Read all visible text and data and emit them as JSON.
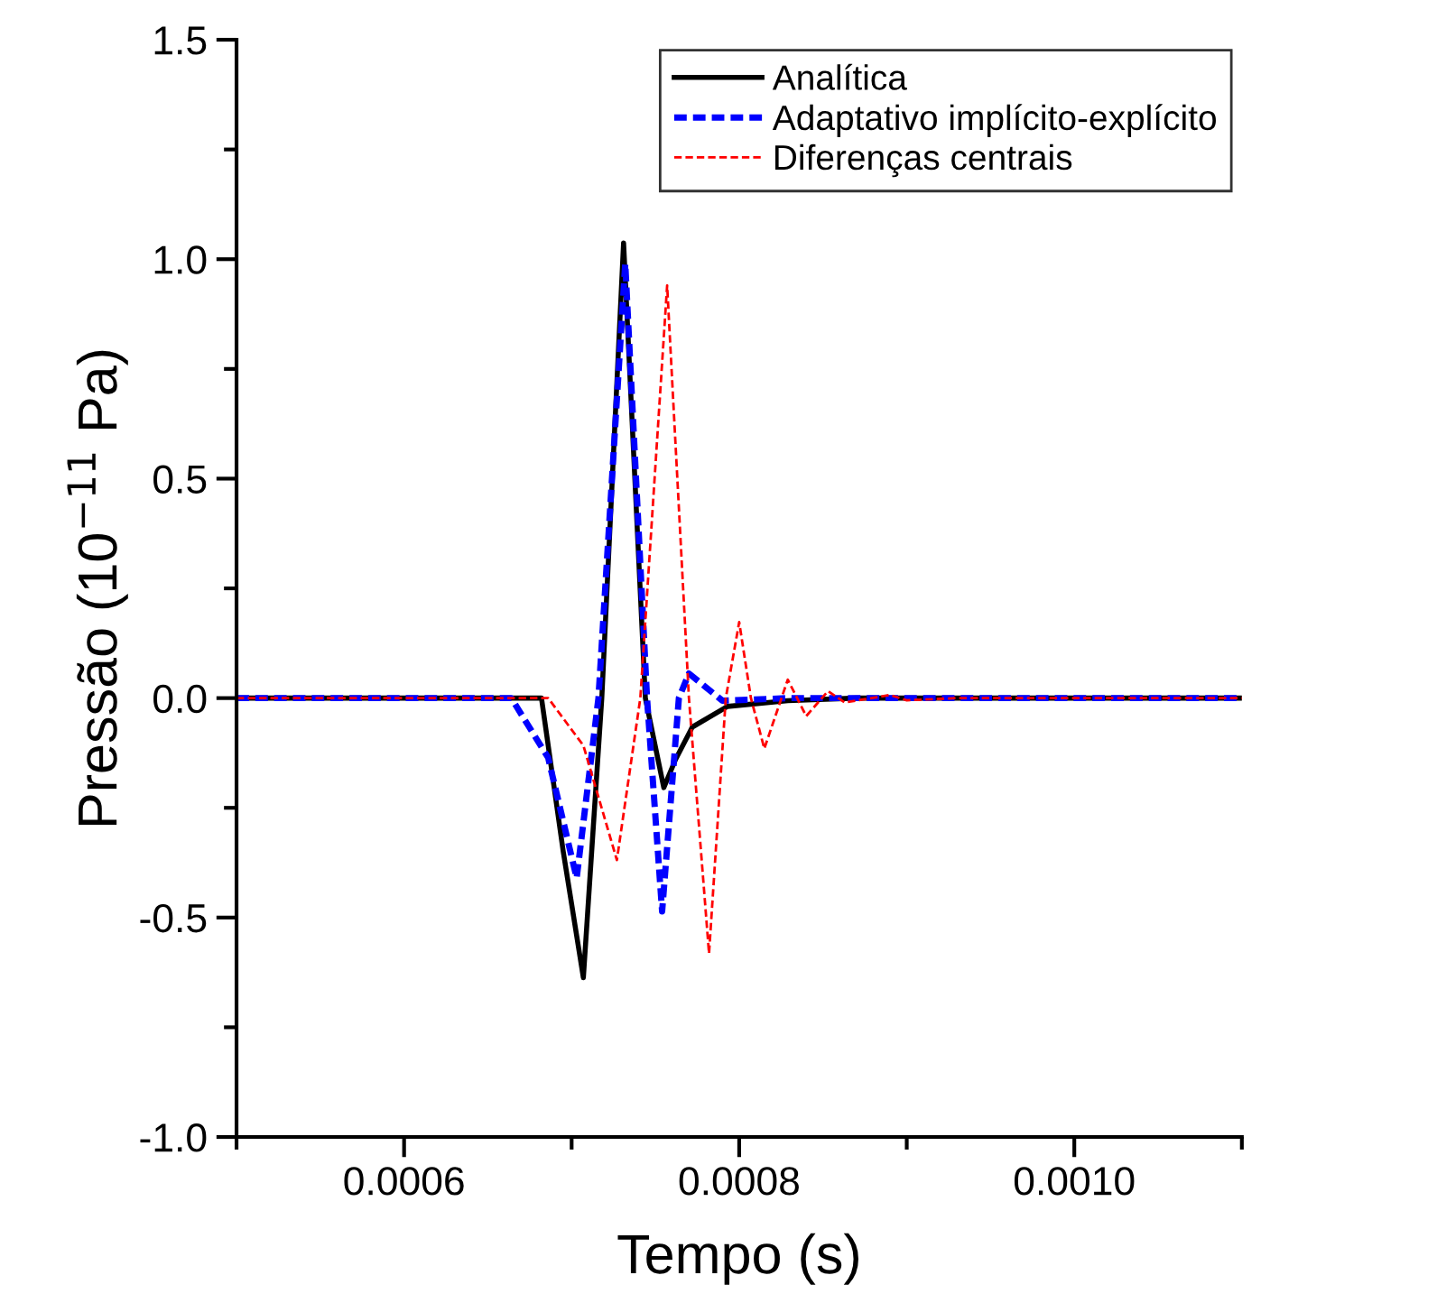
{
  "chart_data": {
    "type": "line",
    "xlabel": "Tempo (s)",
    "ylabel": "Pressão (10$^{−11}$ Pa)",
    "xlim": [
      0.0005,
      0.0011
    ],
    "ylim": [
      -1.0,
      1.5
    ],
    "xticks": [
      {
        "value": 0.0005,
        "label": null
      },
      {
        "value": 0.0006,
        "label": "0.0006"
      },
      {
        "value": 0.0007,
        "label": null
      },
      {
        "value": 0.0008,
        "label": "0.0008"
      },
      {
        "value": 0.0009,
        "label": null
      },
      {
        "value": 0.001,
        "label": "0.0010"
      },
      {
        "value": 0.0011,
        "label": null
      }
    ],
    "yticks": [
      {
        "value": -1.0,
        "label": "-1.0"
      },
      {
        "value": -0.75,
        "label": null
      },
      {
        "value": -0.5,
        "label": "-0.5"
      },
      {
        "value": -0.25,
        "label": null
      },
      {
        "value": 0.0,
        "label": "0.0"
      },
      {
        "value": 0.25,
        "label": null
      },
      {
        "value": 0.5,
        "label": "0.5"
      },
      {
        "value": 0.75,
        "label": null
      },
      {
        "value": 1.0,
        "label": "1.0"
      },
      {
        "value": 1.25,
        "label": null
      },
      {
        "value": 1.5,
        "label": "1.5"
      }
    ],
    "grid": false,
    "legend": "top right",
    "series": [
      {
        "name": "Analítica",
        "color": "#000000",
        "line_style": "solid",
        "x": [
          0.0005,
          0.00068,
          0.000682,
          0.000695,
          0.000707,
          0.000718,
          0.000731,
          0.000744,
          0.000755,
          0.000762,
          0.000772,
          0.000793,
          0.000829,
          0.00087,
          0.0011
        ],
        "values": [
          0,
          0,
          0,
          -0.35,
          -0.637,
          0,
          1.037,
          0,
          -0.204,
          -0.14,
          -0.066,
          -0.019,
          -0.006,
          0,
          0
        ]
      },
      {
        "name": "Adaptativo implícito-explícito",
        "color": "#0000ff",
        "line_style": "dashed",
        "x": [
          0.0005,
          0.00066,
          0.000664,
          0.000686,
          0.000703,
          0.000716,
          0.000732,
          0.000745,
          0.000754,
          0.000764,
          0.00077,
          0.00079,
          0.00083,
          0.0011
        ],
        "values": [
          0,
          0,
          0,
          -0.136,
          -0.41,
          0,
          0.99,
          0,
          -0.486,
          0,
          0.056,
          -0.006,
          0,
          0
        ]
      },
      {
        "name": "Diferenças centrais",
        "color": "#ff0000",
        "line_style": "dotted",
        "x": [
          0.0005,
          0.000686,
          0.000707,
          0.000727,
          0.000741,
          0.000757,
          0.00077,
          0.000782,
          0.000792,
          0.0008,
          0.000807,
          0.000815,
          0.000829,
          0.00084,
          0.000853,
          0.000863,
          0.00089,
          0.0009,
          0.00093,
          0.0011
        ],
        "values": [
          0,
          0,
          -0.108,
          -0.369,
          0,
          0.94,
          0,
          -0.582,
          0,
          0.173,
          0,
          -0.115,
          0.042,
          -0.041,
          0.016,
          -0.01,
          0.007,
          -0.005,
          0,
          0
        ]
      }
    ]
  }
}
